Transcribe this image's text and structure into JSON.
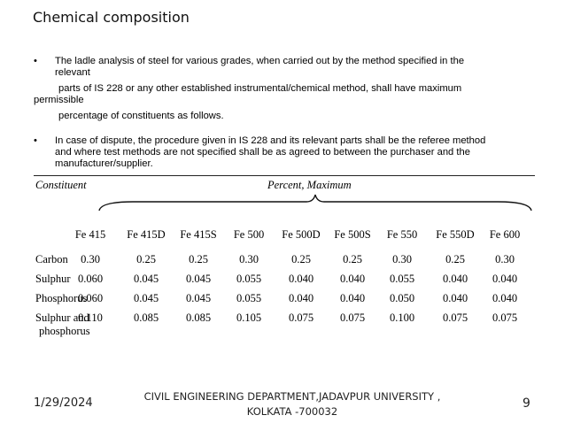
{
  "slide": {
    "title": "Chemical composition",
    "bullets": [
      {
        "marker": "•",
        "line1": "The ladle analysis of steel for various grades, when carried out by the method specified in the",
        "line2": "relevant",
        "line3": "parts of IS 228 or any other established instrumental/chemical method, shall have maximum",
        "line4": "permissible",
        "line5": "percentage of constituents as follows."
      },
      {
        "marker": "•",
        "line1": "In case of dispute, the procedure given in IS 228 and its relevant parts shall be the referee method",
        "line2": "and where test methods are not specified shall be as agreed to between the purchaser and the",
        "line3": "manufacturer/supplier."
      }
    ]
  },
  "table": {
    "header_constituent": "Constituent",
    "header_percent": "Percent, Maximum",
    "grades": [
      "Fe 415",
      "Fe 415D",
      "Fe 415S",
      "Fe 500",
      "Fe 500D",
      "Fe 500S",
      "Fe 550",
      "Fe 550D",
      "Fe 600"
    ],
    "rows": [
      {
        "label": "Carbon",
        "values": [
          "0.30",
          "0.25",
          "0.25",
          "0.30",
          "0.25",
          "0.25",
          "0.30",
          "0.25",
          "0.30"
        ]
      },
      {
        "label": "Sulphur",
        "values": [
          "0.060",
          "0.045",
          "0.045",
          "0.055",
          "0.040",
          "0.040",
          "0.055",
          "0.040",
          "0.040"
        ]
      },
      {
        "label": "Phosphorus",
        "values": [
          "0.060",
          "0.045",
          "0.045",
          "0.055",
          "0.040",
          "0.040",
          "0.050",
          "0.040",
          "0.040"
        ]
      },
      {
        "label": "Sulphur and",
        "label2": "phosphorus",
        "values": [
          "0.110",
          "0.085",
          "0.085",
          "0.105",
          "0.075",
          "0.075",
          "0.100",
          "0.075",
          "0.075"
        ]
      }
    ]
  },
  "footer": {
    "date": "1/29/2024",
    "department_line1": "CIVIL ENGINEERING DEPARTMENT,JADAVPUR UNIVERSITY ,",
    "department_line2": "KOLKATA -700032",
    "page_number": "9"
  }
}
